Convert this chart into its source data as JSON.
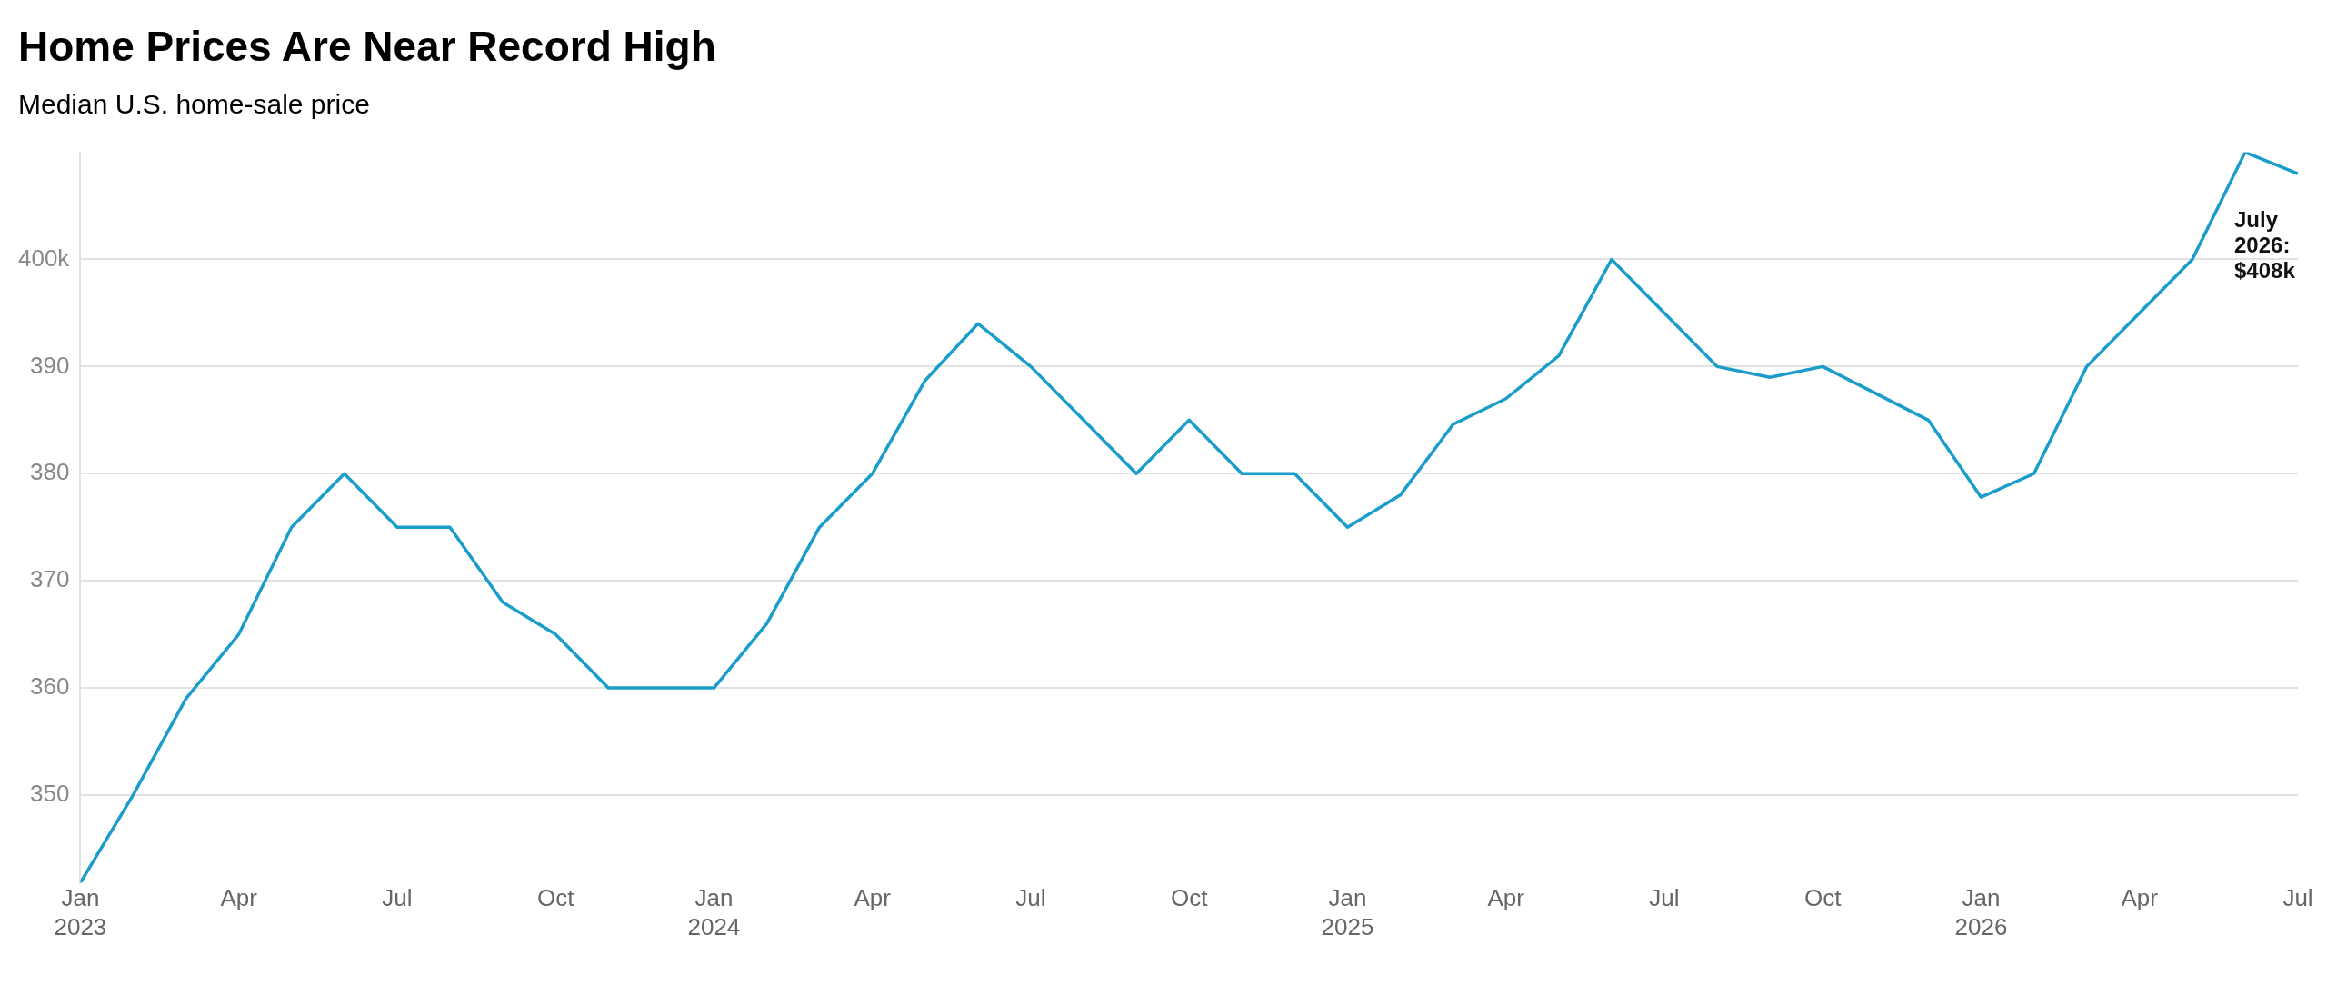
{
  "chart_data": {
    "type": "line",
    "title": "Home Prices Are Near Record High",
    "subtitle": "Median U.S. home-sale price",
    "x": [
      "2023-01",
      "2023-02",
      "2023-03",
      "2023-04",
      "2023-05",
      "2023-06",
      "2023-07",
      "2023-08",
      "2023-09",
      "2023-10",
      "2023-11",
      "2023-12",
      "2024-01",
      "2024-02",
      "2024-03",
      "2024-04",
      "2024-05",
      "2024-06",
      "2024-07",
      "2024-08",
      "2024-09",
      "2024-10",
      "2024-11",
      "2024-12",
      "2025-01",
      "2025-02",
      "2025-03",
      "2025-04",
      "2025-05",
      "2025-06",
      "2025-07",
      "2025-08",
      "2025-09",
      "2025-10",
      "2025-11",
      "2025-12",
      "2026-01",
      "2026-02",
      "2026-03",
      "2026-04",
      "2026-05",
      "2026-06",
      "2026-07"
    ],
    "series": [
      {
        "color": "#1a9dcb",
        "values": [
          341.8,
          350,
          359,
          365,
          375,
          380,
          375,
          375,
          368,
          365,
          360,
          360,
          360,
          366,
          375,
          380,
          388.7,
          394,
          390,
          385,
          380,
          385,
          380,
          380,
          375,
          378,
          384.6,
          387,
          391,
          400,
          395,
          390,
          389,
          390,
          387.5,
          385,
          377.8,
          380,
          390,
          395,
          400,
          410,
          408
        ]
      }
    ],
    "xlim": [
      "2023-01",
      "2026-07"
    ],
    "xticks": [
      {
        "value": "2023-01",
        "label": "Jan 2023"
      },
      {
        "value": "2023-04",
        "label": "Apr"
      },
      {
        "value": "2023-07",
        "label": "Jul"
      },
      {
        "value": "2023-10",
        "label": "Oct"
      },
      {
        "value": "2024-01",
        "label": "Jan 2024"
      },
      {
        "value": "2024-04",
        "label": "Apr"
      },
      {
        "value": "2024-07",
        "label": "Jul"
      },
      {
        "value": "2024-10",
        "label": "Oct"
      },
      {
        "value": "2025-01",
        "label": "Jan 2025"
      },
      {
        "value": "2025-04",
        "label": "Apr"
      },
      {
        "value": "2025-07",
        "label": "Jul"
      },
      {
        "value": "2025-10",
        "label": "Oct"
      },
      {
        "value": "2026-01",
        "label": "Jan 2026"
      },
      {
        "value": "2026-04",
        "label": "Apr"
      },
      {
        "value": "2026-07",
        "label": "Jul"
      }
    ],
    "ylim": [
      341.8,
      410
    ],
    "yticks": [
      350,
      360,
      370,
      380,
      390,
      {
        "value": 400,
        "label": "400k"
      }
    ],
    "grid": "y",
    "legend": false,
    "marker": "none",
    "line_style": "solid",
    "annotations": [
      {
        "text": "July 2026: $408k",
        "x": "2026-07",
        "y": 408
      }
    ]
  }
}
